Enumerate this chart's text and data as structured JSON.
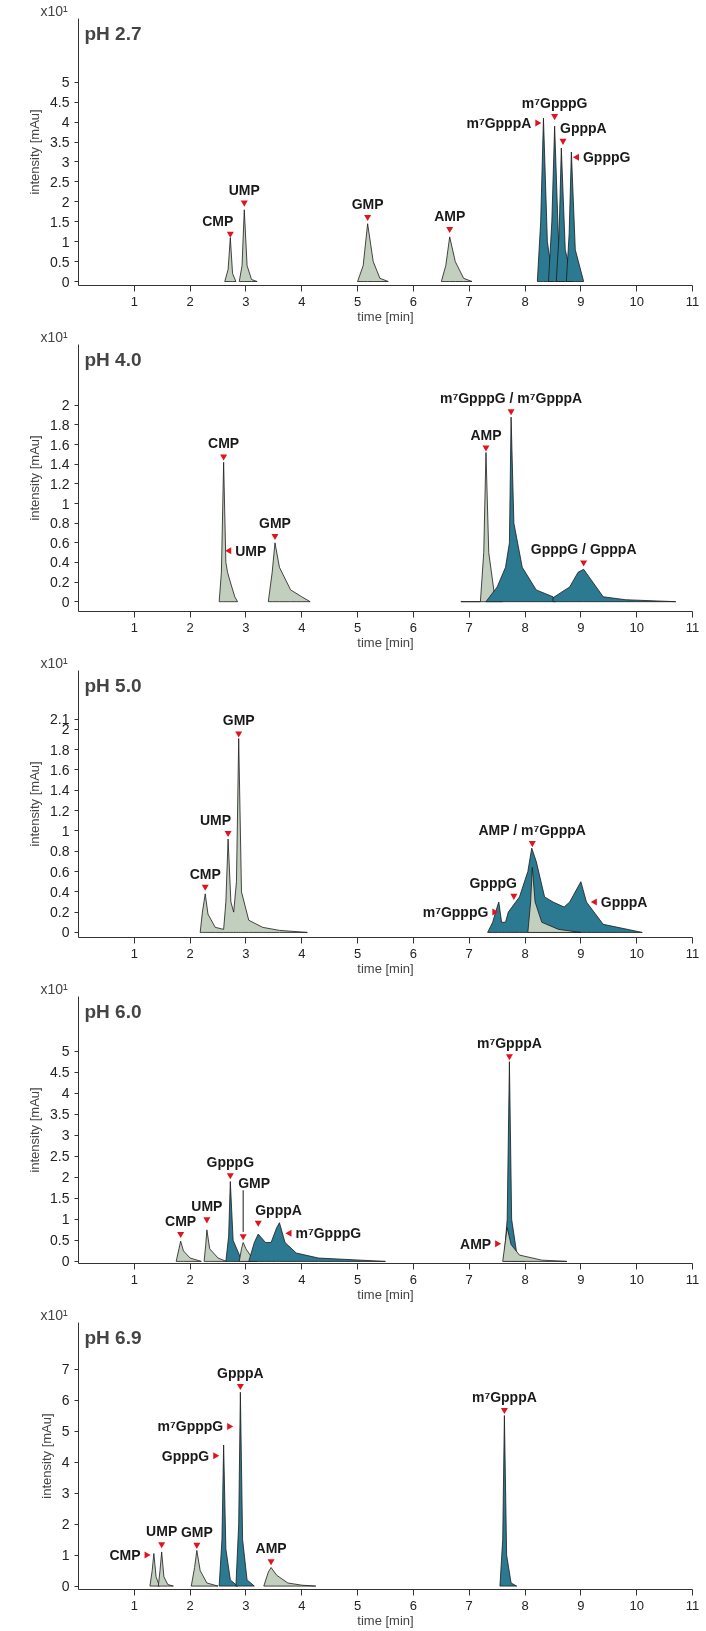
{
  "chart_data": [
    {
      "type": "area",
      "title": "pH 2.7",
      "xlabel": "time [min]",
      "ylabel": "intensity [mAu]",
      "xlim": [
        0,
        11
      ],
      "xticks": [
        1,
        2,
        3,
        4,
        5,
        6,
        7,
        8,
        9,
        10,
        11
      ],
      "ylim": [
        -0.1,
        6.6
      ],
      "yticks": [
        0,
        0.5,
        1,
        1.5,
        2,
        2.5,
        3,
        3.5,
        4,
        4.5,
        5
      ],
      "series": [
        {
          "color": "#c3cfbe",
          "x": [
            2.62,
            2.68,
            2.72,
            2.76,
            2.82
          ],
          "values": [
            0,
            0.3,
            1.1,
            0.2,
            0
          ]
        },
        {
          "color": "#c3cfbe",
          "x": [
            2.88,
            2.93,
            2.97,
            3.02,
            3.1,
            3.2
          ],
          "values": [
            0,
            0.4,
            1.8,
            0.4,
            0.05,
            0
          ]
        },
        {
          "color": "#c3cfbe",
          "x": [
            5.0,
            5.1,
            5.18,
            5.28,
            5.4,
            5.55
          ],
          "values": [
            0,
            0.4,
            1.45,
            0.5,
            0.08,
            0
          ]
        },
        {
          "color": "#c3cfbe",
          "x": [
            6.5,
            6.58,
            6.65,
            6.75,
            6.9,
            7.05
          ],
          "values": [
            0,
            0.4,
            1.12,
            0.5,
            0.08,
            0
          ]
        },
        {
          "color": "#2b7a91",
          "x": [
            8.22,
            8.28,
            8.33,
            8.4,
            8.5
          ],
          "values": [
            0,
            1.5,
            4.1,
            1.0,
            0
          ]
        },
        {
          "color": "#2b7a91",
          "x": [
            8.42,
            8.48,
            8.53,
            8.6,
            8.7
          ],
          "values": [
            0,
            1.5,
            3.9,
            1.0,
            0
          ]
        },
        {
          "color": "#2b7a91",
          "x": [
            8.56,
            8.61,
            8.65,
            8.72,
            8.85
          ],
          "values": [
            0,
            1.2,
            3.35,
            0.8,
            0
          ]
        },
        {
          "color": "#2b7a91",
          "x": [
            8.74,
            8.79,
            8.83,
            8.9,
            9.05
          ],
          "values": [
            0,
            1.2,
            3.25,
            0.8,
            0
          ]
        }
      ],
      "annotations": [
        "x10¹",
        {
          "text": "CMP",
          "x": 2.72,
          "y": 1.2
        },
        {
          "text": "UMP",
          "x": 2.97,
          "y": 1.98
        },
        {
          "text": "GMP",
          "x": 5.18,
          "y": 1.62
        },
        {
          "text": "AMP",
          "x": 6.65,
          "y": 1.32
        },
        {
          "text": "m⁷GpppA",
          "x": 8.22,
          "y": 3.98
        },
        {
          "text": "m⁷GpppG",
          "x": 8.53,
          "y": 4.15
        },
        {
          "text": "GpppA",
          "x": 8.68,
          "y": 3.53
        },
        {
          "text": "GpppG",
          "x": 8.93,
          "y": 3.12
        }
      ]
    },
    {
      "type": "area",
      "title": "pH 4.0",
      "xlabel": "time [min]",
      "ylabel": "intensity [mAu]",
      "xlim": [
        0,
        11
      ],
      "xticks": [
        1,
        2,
        3,
        4,
        5,
        6,
        7,
        8,
        9,
        10,
        11
      ],
      "ylim": [
        -0.1,
        2.62
      ],
      "yticks": [
        0,
        0.2,
        0.4,
        0.6,
        0.8,
        1,
        1.2,
        1.4,
        1.6,
        1.8,
        2
      ],
      "series": [
        {
          "color": "#c3cfbe",
          "x": [
            2.52,
            2.56,
            2.6,
            2.64,
            2.67,
            2.72,
            2.8,
            2.85
          ],
          "values": [
            0,
            0.3,
            1.42,
            0.4,
            0.3,
            0.2,
            0.05,
            0
          ]
        },
        {
          "color": "#c3cfbe",
          "x": [
            3.4,
            3.47,
            3.52,
            3.6,
            3.8,
            4.0,
            4.15
          ],
          "values": [
            0,
            0.3,
            0.6,
            0.35,
            0.12,
            0.05,
            0
          ]
        },
        {
          "color": "#c3cfbe",
          "x": [
            6.85,
            7.2,
            7.26,
            7.3,
            7.35,
            7.45,
            7.6
          ],
          "values": [
            0,
            0,
            0.5,
            1.52,
            0.5,
            0.08,
            0
          ]
        },
        {
          "color": "#2b7a91",
          "x": [
            7.3,
            7.5,
            7.65,
            7.72,
            7.75,
            7.8,
            7.95,
            8.2,
            8.5,
            8.55
          ],
          "values": [
            0,
            0.15,
            0.35,
            0.6,
            1.88,
            0.8,
            0.35,
            0.12,
            0.05,
            0
          ]
        },
        {
          "color": "#2b7a91",
          "x": [
            8.5,
            8.8,
            8.95,
            9.05,
            9.15,
            9.4,
            9.8,
            10.7
          ],
          "values": [
            0.04,
            0.15,
            0.3,
            0.33,
            0.25,
            0.05,
            0.02,
            0
          ]
        }
      ],
      "annotations": [
        "x10¹",
        {
          "text": "CMP",
          "x": 2.6,
          "y": 1.48
        },
        {
          "text": "UMP",
          "x": 2.7,
          "y": 0.52
        },
        {
          "text": "GMP",
          "x": 3.52,
          "y": 0.67
        },
        {
          "text": "AMP",
          "x": 7.3,
          "y": 1.57
        },
        {
          "text": "m⁷GpppG / m⁷GpppA",
          "x": 7.75,
          "y": 1.94
        },
        {
          "text": "GpppG / GpppA",
          "x": 9.05,
          "y": 0.4
        }
      ]
    },
    {
      "type": "area",
      "title": "pH 5.0",
      "xlabel": "time [min]",
      "ylabel": "intensity [mAu]",
      "xlim": [
        0,
        11
      ],
      "xticks": [
        1,
        2,
        3,
        4,
        5,
        6,
        7,
        8,
        9,
        10,
        11
      ],
      "ylim": [
        -0.05,
        2.58
      ],
      "yticks": [
        0,
        0.2,
        0.4,
        0.6,
        0.8,
        1,
        1.2,
        1.4,
        1.6,
        1.8,
        2,
        2.1
      ],
      "series": [
        {
          "color": "#c3cfbe",
          "x": [
            2.18,
            2.22,
            2.27,
            2.32,
            2.45,
            2.6,
            2.64,
            2.68,
            2.73,
            2.78,
            2.83,
            2.87,
            2.92,
            3.05,
            3.3,
            3.6,
            4.1
          ],
          "values": [
            0,
            0.2,
            0.38,
            0.18,
            0.05,
            0.03,
            0.3,
            0.92,
            0.3,
            0.2,
            0.5,
            1.91,
            0.4,
            0.12,
            0.05,
            0.02,
            0
          ]
        },
        {
          "color": "#2b7a91",
          "x": [
            7.33,
            7.42,
            7.5,
            7.53,
            7.58,
            7.65,
            7.7,
            7.9,
            8.05,
            8.12,
            8.2,
            8.35,
            8.5,
            8.7,
            8.8,
            8.95,
            9.0,
            9.1,
            9.4,
            10.1
          ],
          "values": [
            0,
            0.1,
            0.25,
            0.3,
            0.1,
            0.1,
            0.2,
            0.35,
            0.6,
            0.83,
            0.7,
            0.35,
            0.3,
            0.25,
            0.3,
            0.45,
            0.5,
            0.3,
            0.08,
            0
          ]
        },
        {
          "color": "#c3cfbe",
          "x": [
            8.05,
            8.1,
            8.13,
            8.18,
            8.3,
            8.6,
            9.0
          ],
          "values": [
            0,
            0.3,
            0.64,
            0.3,
            0.1,
            0.03,
            0
          ]
        }
      ],
      "annotations": [
        "x10¹",
        {
          "text": "CMP",
          "x": 2.27,
          "y": 0.45
        },
        {
          "text": "UMP",
          "x": 2.68,
          "y": 0.98
        },
        {
          "text": "GMP",
          "x": 2.87,
          "y": 1.96
        },
        {
          "text": "m⁷GpppG",
          "x": 7.45,
          "y": 0.2
        },
        {
          "text": "GpppG",
          "x": 7.8,
          "y": 0.36
        },
        {
          "text": "AMP / m⁷GpppA",
          "x": 8.13,
          "y": 0.88
        },
        {
          "text": "GpppA",
          "x": 9.25,
          "y": 0.3
        }
      ]
    },
    {
      "type": "area",
      "title": "pH 6.0",
      "xlabel": "time [min]",
      "ylabel": "intensity [mAu]",
      "xlim": [
        0,
        11
      ],
      "xticks": [
        1,
        2,
        3,
        4,
        5,
        6,
        7,
        8,
        9,
        10,
        11
      ],
      "ylim": [
        -0.05,
        6.3
      ],
      "yticks": [
        0,
        0.5,
        1,
        1.5,
        2,
        2.5,
        3,
        3.5,
        4,
        4.5,
        5
      ],
      "series": [
        {
          "color": "#c3cfbe",
          "x": [
            1.75,
            1.8,
            1.83,
            1.88,
            2.0,
            2.2
          ],
          "values": [
            0,
            0.3,
            0.48,
            0.25,
            0.08,
            0
          ]
        },
        {
          "color": "#c3cfbe",
          "x": [
            2.25,
            2.28,
            2.3,
            2.35,
            2.5,
            2.65
          ],
          "values": [
            0,
            0.4,
            0.75,
            0.3,
            0.08,
            0
          ]
        },
        {
          "color": "#2b7a91",
          "x": [
            2.64,
            2.69,
            2.72,
            2.77,
            2.9,
            3.1
          ],
          "values": [
            0,
            0.6,
            1.9,
            0.5,
            0.1,
            0
          ]
        },
        {
          "color": "#c3cfbe",
          "x": [
            2.88,
            2.92,
            2.95,
            3.0,
            3.1,
            3.2
          ],
          "values": [
            0,
            0.3,
            0.45,
            0.3,
            0.1,
            0
          ]
        },
        {
          "color": "#2b7a91",
          "x": [
            3.05,
            3.15,
            3.22,
            3.35,
            3.45,
            3.55,
            3.6,
            3.7,
            3.9,
            4.3,
            5.5
          ],
          "values": [
            0,
            0.45,
            0.65,
            0.45,
            0.45,
            0.8,
            0.92,
            0.45,
            0.2,
            0.08,
            0
          ]
        },
        {
          "color": "#2b7a91",
          "x": [
            7.62,
            7.68,
            7.72,
            7.76,
            7.85,
            8.0
          ],
          "values": [
            0,
            1.0,
            4.75,
            1.0,
            0.2,
            0
          ]
        },
        {
          "color": "#c3cfbe",
          "x": [
            7.6,
            7.65,
            7.68,
            7.75,
            7.9,
            8.3,
            8.75
          ],
          "values": [
            0,
            0.5,
            0.8,
            0.4,
            0.15,
            0.03,
            0
          ]
        }
      ],
      "annotations": [
        "x10¹",
        {
          "text": "CMP",
          "x": 1.83,
          "y": 0.65
        },
        {
          "text": "UMP",
          "x": 2.3,
          "y": 1.0
        },
        {
          "text": "GpppG",
          "x": 2.72,
          "y": 2.05
        },
        {
          "text": "GMP",
          "x": 2.95,
          "y": 0.6
        },
        {
          "text": "GpppA",
          "x": 3.22,
          "y": 0.92
        },
        {
          "text": "m⁷GpppG",
          "x": 3.78,
          "y": 0.67
        },
        {
          "text": "m⁷GpppA",
          "x": 7.72,
          "y": 4.88
        },
        {
          "text": "AMP",
          "x": 7.5,
          "y": 0.42
        }
      ]
    },
    {
      "type": "area",
      "title": "pH 6.9",
      "xlabel": "time [min]",
      "ylabel": "intensity [mAu]",
      "xlim": [
        0,
        11
      ],
      "xticks": [
        1,
        2,
        3,
        4,
        5,
        6,
        7,
        8,
        9,
        10,
        11
      ],
      "ylim": [
        -0.11,
        8.5
      ],
      "yticks": [
        0,
        1,
        2,
        3,
        4,
        5,
        6,
        7
      ],
      "series": [
        {
          "color": "#c3cfbe",
          "x": [
            1.28,
            1.32,
            1.35,
            1.39,
            1.45
          ],
          "values": [
            0,
            0.5,
            1.05,
            0.3,
            0
          ]
        },
        {
          "color": "#c3cfbe",
          "x": [
            1.43,
            1.46,
            1.49,
            1.53,
            1.6,
            1.7
          ],
          "values": [
            0,
            0.5,
            1.1,
            0.3,
            0.05,
            0
          ]
        },
        {
          "color": "#c3cfbe",
          "x": [
            2.02,
            2.08,
            2.12,
            2.18,
            2.3,
            2.5
          ],
          "values": [
            0,
            0.6,
            1.15,
            0.5,
            0.1,
            0
          ]
        },
        {
          "color": "#2b7a91",
          "x": [
            2.52,
            2.57,
            2.6,
            2.64,
            2.72,
            2.85
          ],
          "values": [
            0,
            1.5,
            4.55,
            1.2,
            0.2,
            0
          ]
        },
        {
          "color": "#2b7a91",
          "x": [
            2.82,
            2.87,
            2.9,
            2.94,
            3.02,
            3.15
          ],
          "values": [
            0,
            2.0,
            6.25,
            1.5,
            0.2,
            0
          ]
        },
        {
          "color": "#c3cfbe",
          "x": [
            3.32,
            3.4,
            3.45,
            3.55,
            3.75,
            4.0,
            4.25
          ],
          "values": [
            0,
            0.45,
            0.6,
            0.35,
            0.1,
            0.03,
            0
          ]
        },
        {
          "color": "#2b7a91",
          "x": [
            7.55,
            7.6,
            7.63,
            7.67,
            7.75,
            7.85
          ],
          "values": [
            0,
            1.5,
            5.5,
            1.0,
            0.1,
            0
          ]
        }
      ],
      "annotations": [
        "x10¹",
        {
          "text": "CMP",
          "x": 1.22,
          "y": 1.0
        },
        {
          "text": "UMP",
          "x": 1.49,
          "y": 1.35
        },
        {
          "text": "GMP",
          "x": 2.12,
          "y": 1.33
        },
        {
          "text": "GpppG",
          "x": 2.45,
          "y": 4.2
        },
        {
          "text": "m⁷GpppG",
          "x": 2.7,
          "y": 5.15
        },
        {
          "text": "GpppA",
          "x": 2.9,
          "y": 6.45
        },
        {
          "text": "AMP",
          "x": 3.45,
          "y": 0.8
        },
        {
          "text": "m⁷GpppA",
          "x": 7.63,
          "y": 5.68
        }
      ]
    }
  ]
}
